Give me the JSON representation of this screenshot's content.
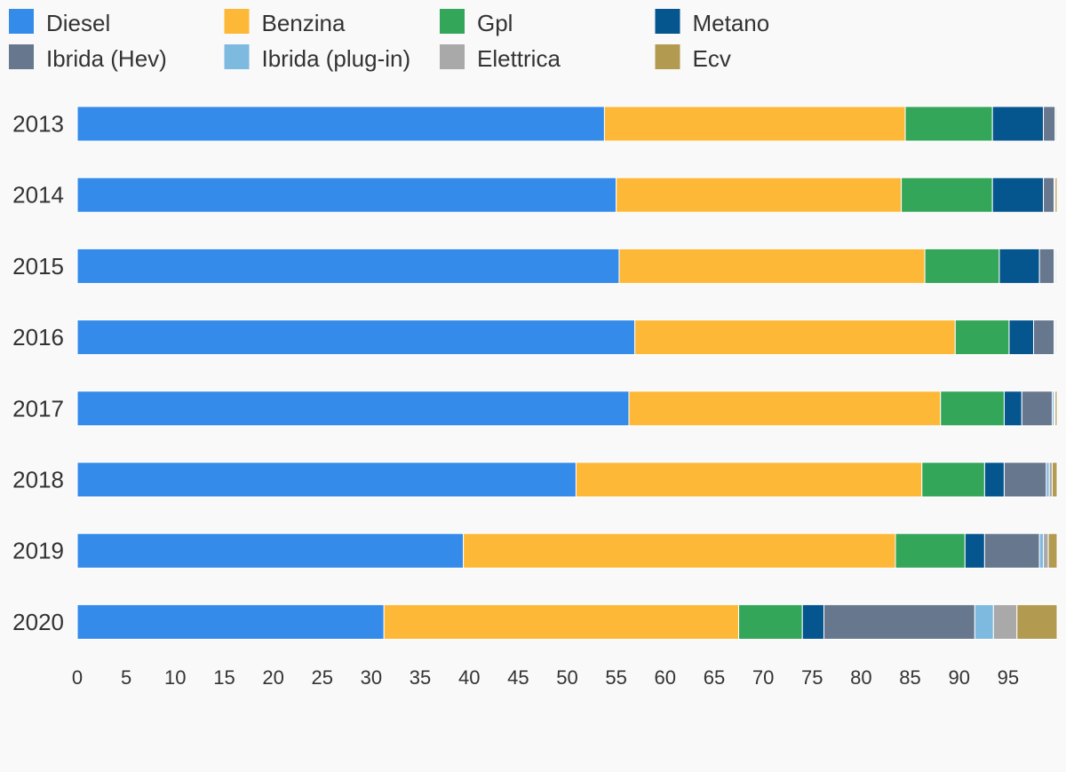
{
  "chart_data": {
    "type": "bar",
    "orientation": "horizontal",
    "stacked": true,
    "title": "",
    "xlabel": "",
    "ylabel": "",
    "xlim": [
      0,
      100
    ],
    "x_ticks": [
      0,
      5,
      10,
      15,
      20,
      25,
      30,
      35,
      40,
      45,
      50,
      55,
      60,
      65,
      70,
      75,
      80,
      85,
      90,
      95
    ],
    "grid": false,
    "legend_position": "top",
    "categories": [
      "2013",
      "2014",
      "2015",
      "2016",
      "2017",
      "2018",
      "2019",
      "2020"
    ],
    "series": [
      {
        "name": "Diesel",
        "color": "#348BEA",
        "values": [
          53.8,
          55.0,
          55.3,
          56.9,
          56.3,
          50.9,
          39.4,
          31.3
        ]
      },
      {
        "name": "Benzina",
        "color": "#FEB838",
        "values": [
          30.7,
          29.1,
          31.2,
          32.7,
          31.8,
          35.3,
          44.1,
          36.2
        ]
      },
      {
        "name": "Gpl",
        "color": "#34A65A",
        "values": [
          8.9,
          9.3,
          7.6,
          5.5,
          6.5,
          6.4,
          7.1,
          6.5
        ]
      },
      {
        "name": "Metano",
        "color": "#05558F",
        "values": [
          5.2,
          5.2,
          4.1,
          2.5,
          1.8,
          2.0,
          2.0,
          2.2
        ]
      },
      {
        "name": "Ibrida (Hev)",
        "color": "#67778E",
        "values": [
          1.2,
          1.1,
          1.5,
          2.1,
          3.1,
          4.3,
          5.6,
          15.4
        ]
      },
      {
        "name": "Ibrida (plug-in)",
        "color": "#7EB9E0",
        "values": [
          0.0,
          0.0,
          0.1,
          0.1,
          0.2,
          0.3,
          0.4,
          1.9
        ]
      },
      {
        "name": "Elettrica",
        "color": "#A9A9A9",
        "values": [
          0.1,
          0.1,
          0.1,
          0.1,
          0.1,
          0.3,
          0.5,
          2.4
        ]
      },
      {
        "name": "Ecv",
        "color": "#B39A51",
        "values": [
          0.1,
          0.2,
          0.1,
          0.1,
          0.2,
          0.5,
          0.9,
          4.1
        ]
      }
    ]
  }
}
